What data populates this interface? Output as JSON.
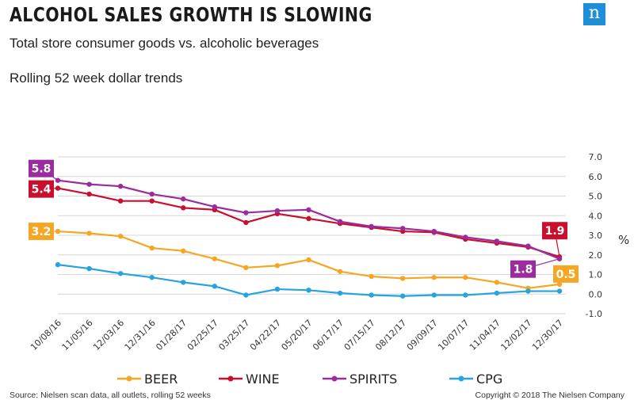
{
  "header": {
    "title": "ALCOHOL SALES GROWTH IS SLOWING",
    "subtitle": "Total store consumer goods vs. alcoholic beverages",
    "subtitle2": "Rolling 52 week dollar trends",
    "logo_letter": "n"
  },
  "footer": {
    "source": "Source: Nielsen scan data, all outlets, rolling 52 weeks",
    "copyright": "Copyright © 2018 The Nielsen Company"
  },
  "chart_data": {
    "type": "line",
    "title": "ALCOHOL SALES GROWTH IS SLOWING",
    "ylabel": "%",
    "xlabel": "",
    "ylim": [
      -1.0,
      7.0
    ],
    "yticks": [
      "7.0",
      "6.0",
      "5.0",
      "4.0",
      "3.0",
      "2.0",
      "1.0",
      "0.0",
      "-1.0"
    ],
    "ytick_values": [
      7,
      6,
      5,
      4,
      3,
      2,
      1,
      0,
      -1
    ],
    "categories": [
      "10/08/16",
      "11/05/16",
      "12/03/16",
      "12/31/16",
      "01/28/17",
      "02/25/17",
      "03/25/17",
      "04/22/17",
      "05/20/17",
      "06/17/17",
      "07/15/17",
      "08/12/17",
      "09/09/17",
      "10/07/17",
      "11/04/17",
      "12/02/17",
      "12/30/17"
    ],
    "grid": true,
    "legend_position": "bottom",
    "series": [
      {
        "name": "BEER",
        "color": "#f5a623",
        "values": [
          3.2,
          3.1,
          2.95,
          2.35,
          2.2,
          1.8,
          1.35,
          1.45,
          1.75,
          1.15,
          0.9,
          0.8,
          0.85,
          0.85,
          0.6,
          0.3,
          0.5
        ],
        "callouts": [
          {
            "index": 0,
            "label": "3.2"
          },
          {
            "index": 16,
            "label": "0.5"
          }
        ]
      },
      {
        "name": "WINE",
        "color": "#c8102e",
        "values": [
          5.4,
          5.1,
          4.75,
          4.75,
          4.4,
          4.3,
          3.65,
          4.1,
          3.85,
          3.6,
          3.4,
          3.2,
          3.15,
          2.8,
          2.6,
          2.4,
          1.9
        ],
        "callouts": [
          {
            "index": 0,
            "label": "5.4"
          },
          {
            "index": 16,
            "label": "1.9"
          }
        ]
      },
      {
        "name": "SPIRITS",
        "color": "#9b2c9d",
        "values": [
          5.8,
          5.6,
          5.5,
          5.1,
          4.85,
          4.45,
          4.15,
          4.25,
          4.3,
          3.7,
          3.45,
          3.35,
          3.2,
          2.9,
          2.7,
          2.45,
          1.8
        ],
        "callouts": [
          {
            "index": 0,
            "label": "5.8"
          },
          {
            "index": 16,
            "label": "1.8"
          }
        ]
      },
      {
        "name": "CPG",
        "color": "#29a3dd",
        "values": [
          1.5,
          1.3,
          1.05,
          0.85,
          0.6,
          0.4,
          -0.05,
          0.25,
          0.2,
          0.05,
          -0.05,
          -0.1,
          -0.05,
          -0.05,
          0.05,
          0.15,
          0.15
        ],
        "callouts": []
      }
    ]
  }
}
